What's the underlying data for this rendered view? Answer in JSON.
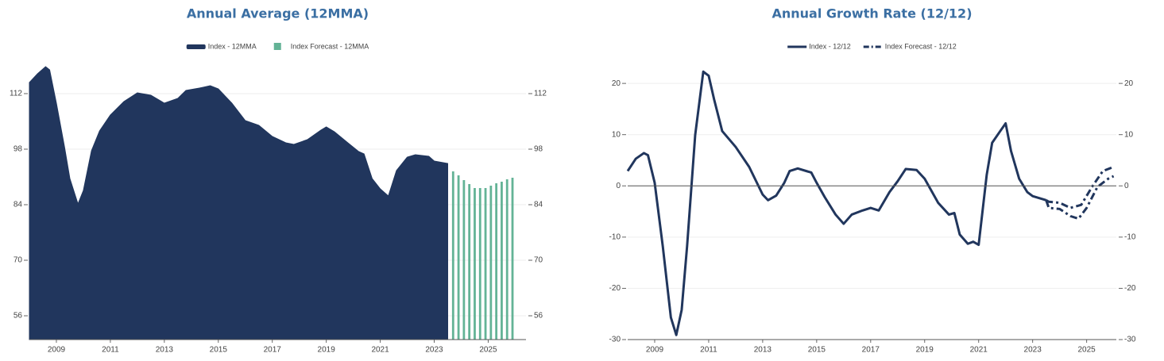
{
  "chart_data": [
    {
      "type": "area",
      "title": "Annual Average (12MMA)",
      "xlim": [
        2008,
        2026.4
      ],
      "xticks": [
        2009,
        2011,
        2013,
        2015,
        2017,
        2019,
        2021,
        2023,
        2025
      ],
      "ylim": [
        50,
        120
      ],
      "yticks": [
        56,
        70,
        84,
        98,
        112
      ],
      "grid": true,
      "mirror_ticks": true,
      "series": [
        {
          "name": "Index - 12MMA",
          "type": "area",
          "color": "#21365d",
          "x": [
            2008.0,
            2008.3,
            2008.6,
            2008.75,
            2009.0,
            2009.3,
            2009.5,
            2009.8,
            2010.0,
            2010.3,
            2010.6,
            2011.0,
            2011.5,
            2012.0,
            2012.5,
            2013.0,
            2013.5,
            2013.8,
            2014.3,
            2014.7,
            2015.0,
            2015.5,
            2016.0,
            2016.5,
            2017.0,
            2017.5,
            2017.8,
            2018.3,
            2018.8,
            2019.0,
            2019.3,
            2019.8,
            2020.2,
            2020.4,
            2020.7,
            2021.0,
            2021.3,
            2021.6,
            2022.0,
            2022.3,
            2022.8,
            2023.0,
            2023.5
          ],
          "values": [
            114.8,
            117,
            118.8,
            118,
            109.6,
            98.6,
            90.6,
            84.2,
            87.6,
            97.6,
            102.6,
            106.6,
            110,
            112.2,
            111.6,
            109.6,
            110.8,
            112.8,
            113.4,
            114,
            113.2,
            109.6,
            105.2,
            104,
            101.2,
            99.6,
            99.2,
            100.4,
            102.8,
            103.6,
            102.4,
            99.6,
            97.4,
            96.8,
            90.6,
            88,
            86.2,
            92.6,
            96,
            96.6,
            96.2,
            95,
            94.4
          ]
        },
        {
          "name": "Index Forecast - 12MMA",
          "type": "bar",
          "color": "#63b396",
          "x": [
            2023.7,
            2023.9,
            2024.1,
            2024.3,
            2024.5,
            2024.7,
            2024.9,
            2025.1,
            2025.3,
            2025.5,
            2025.7,
            2025.9
          ],
          "values": [
            92.4,
            91.4,
            90.2,
            89.2,
            88.2,
            88.2,
            88.2,
            88.8,
            89.4,
            89.8,
            90.4,
            90.8
          ]
        }
      ]
    },
    {
      "type": "line",
      "title": "Annual Growth Rate (12/12)",
      "xlim": [
        2008,
        2026.1
      ],
      "xticks": [
        2009,
        2011,
        2013,
        2015,
        2017,
        2019,
        2021,
        2023,
        2025
      ],
      "ylim": [
        -30,
        24.2
      ],
      "yticks": [
        -30,
        -20,
        -10,
        0,
        10,
        20
      ],
      "grid": true,
      "zero_line": true,
      "mirror_ticks": true,
      "series": [
        {
          "name": "Index - 12/12",
          "dash": "solid",
          "color": "#21365d",
          "x": [
            2008.0,
            2008.3,
            2008.6,
            2008.75,
            2009.0,
            2009.3,
            2009.6,
            2009.8,
            2010.0,
            2010.2,
            2010.5,
            2010.8,
            2011.0,
            2011.2,
            2011.5,
            2012.0,
            2012.5,
            2013.0,
            2013.2,
            2013.5,
            2013.8,
            2014.0,
            2014.3,
            2014.8,
            2015.0,
            2015.3,
            2015.7,
            2016.0,
            2016.3,
            2016.7,
            2017.0,
            2017.3,
            2017.7,
            2018.0,
            2018.3,
            2018.7,
            2019.0,
            2019.5,
            2019.9,
            2020.1,
            2020.3,
            2020.6,
            2020.8,
            2021.0,
            2021.3,
            2021.5,
            2021.8,
            2022.0,
            2022.2,
            2022.5,
            2022.8,
            2023.0,
            2023.5
          ],
          "values": [
            2.9,
            5.3,
            6.4,
            6,
            0.6,
            -11.8,
            -25.7,
            -29.1,
            -24.2,
            -11.8,
            9.9,
            22.3,
            21.5,
            16.9,
            10.7,
            7.6,
            3.7,
            -1.7,
            -2.8,
            -1.9,
            0.6,
            2.9,
            3.4,
            2.6,
            0.6,
            -2.2,
            -5.6,
            -7.4,
            -5.6,
            -4.8,
            -4.3,
            -4.8,
            -1.2,
            0.9,
            3.3,
            3.1,
            1.4,
            -3.3,
            -5.6,
            -5.3,
            -9.5,
            -11.3,
            -10.9,
            -11.5,
            2.2,
            8.4,
            10.7,
            12.2,
            6.8,
            1.4,
            -1.2,
            -2,
            -2.8
          ]
        },
        {
          "name": "Index Forecast - 12/12",
          "dash": "dashdot",
          "color": "#21365d",
          "x": [
            2023.5,
            2023.6,
            2024.0,
            2024.4,
            2024.8,
            2025.2,
            2025.6,
            2026.0
          ],
          "values": [
            -2.8,
            -3.1,
            -3.3,
            -4.3,
            -3.7,
            -0.2,
            2.9,
            3.7
          ]
        },
        {
          "name": "Index Forecast - 12/12",
          "dash": "dashdot",
          "color": "#21365d",
          "legend": false,
          "x": [
            2023.5,
            2023.6,
            2024.0,
            2024.4,
            2024.7,
            2025.0,
            2025.4,
            2025.8,
            2026.0
          ],
          "values": [
            -2.8,
            -4.3,
            -4.5,
            -5.9,
            -6.4,
            -4.3,
            -0.2,
            1.4,
            1.9
          ]
        }
      ]
    }
  ]
}
